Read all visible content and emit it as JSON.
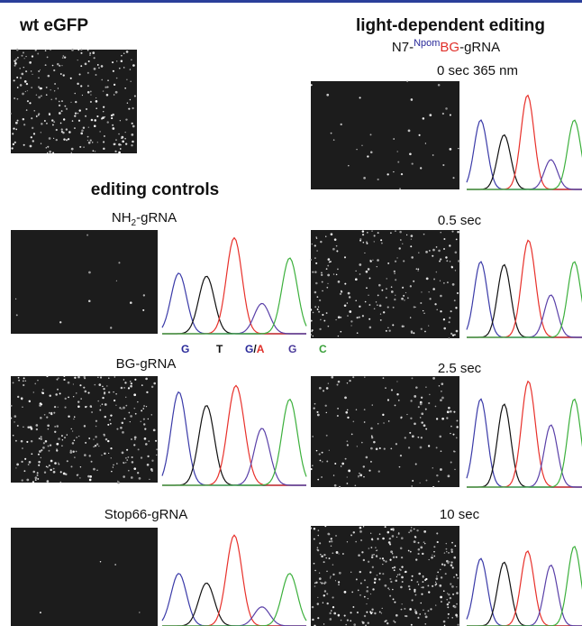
{
  "left": {
    "title": "wt eGFP",
    "section_title": "editing controls",
    "panels": [
      {
        "label_parts": [
          "NH",
          "2",
          "-gRNA"
        ]
      },
      {
        "label": "BG-gRNA"
      },
      {
        "label": "Stop66-gRNA"
      }
    ],
    "bases": [
      "G",
      "T",
      [
        "G",
        "/",
        "A"
      ],
      "G",
      "C"
    ]
  },
  "right": {
    "title": "light-dependent editing",
    "construct": {
      "prefix": "N7-",
      "cage": "Npom",
      "group": "BG",
      "suffix": "-gRNA"
    },
    "panels": [
      {
        "label": "0 sec 365 nm"
      },
      {
        "label": "0.5 sec"
      },
      {
        "label": "2.5 sec"
      },
      {
        "label": "10 sec"
      }
    ]
  }
}
